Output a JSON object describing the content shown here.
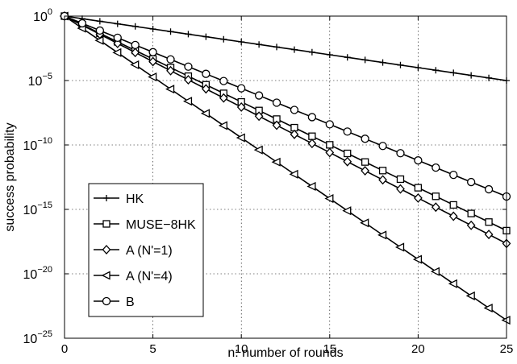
{
  "chart_data": {
    "type": "line",
    "title": "",
    "xlabel": "n: number of rounds",
    "ylabel": "success probability",
    "xlim": [
      0,
      25
    ],
    "ylim_log10": [
      -25,
      0
    ],
    "y_scale": "log",
    "grid": true,
    "legend_position": "lower-left",
    "x_ticks": [
      "0",
      "5",
      "10",
      "15",
      "20",
      "25"
    ],
    "y_ticks": [
      {
        "base": "10",
        "exp": "0"
      },
      {
        "base": "10",
        "exp": "−5"
      },
      {
        "base": "10",
        "exp": "−10"
      },
      {
        "base": "10",
        "exp": "−15"
      },
      {
        "base": "10",
        "exp": "−20"
      },
      {
        "base": "10",
        "exp": "−25"
      }
    ],
    "y_tick_values_log10": [
      0,
      -5,
      -10,
      -15,
      -20,
      -25
    ],
    "x": [
      0,
      1,
      2,
      3,
      4,
      5,
      6,
      7,
      8,
      9,
      10,
      11,
      12,
      13,
      14,
      15,
      16,
      17,
      18,
      19,
      20,
      21,
      22,
      23,
      24,
      25
    ],
    "series": [
      {
        "name": "HK",
        "marker": "plus",
        "log10_start": 0,
        "log10_slope": -0.2,
        "color": "#000000"
      },
      {
        "name": "MUSE−8HK",
        "marker": "square",
        "log10_start": 0,
        "log10_slope": -0.666,
        "color": "#000000"
      },
      {
        "name": "A (N'=1)",
        "marker": "diamond",
        "log10_start": 0,
        "log10_slope": -0.706,
        "color": "#000000"
      },
      {
        "name": "A (N'=4)",
        "marker": "triangle-left",
        "log10_start": 0,
        "log10_slope": -0.944,
        "color": "#000000"
      },
      {
        "name": "B",
        "marker": "circle",
        "log10_start": 0,
        "log10_slope": -0.56,
        "color": "#000000"
      }
    ]
  }
}
